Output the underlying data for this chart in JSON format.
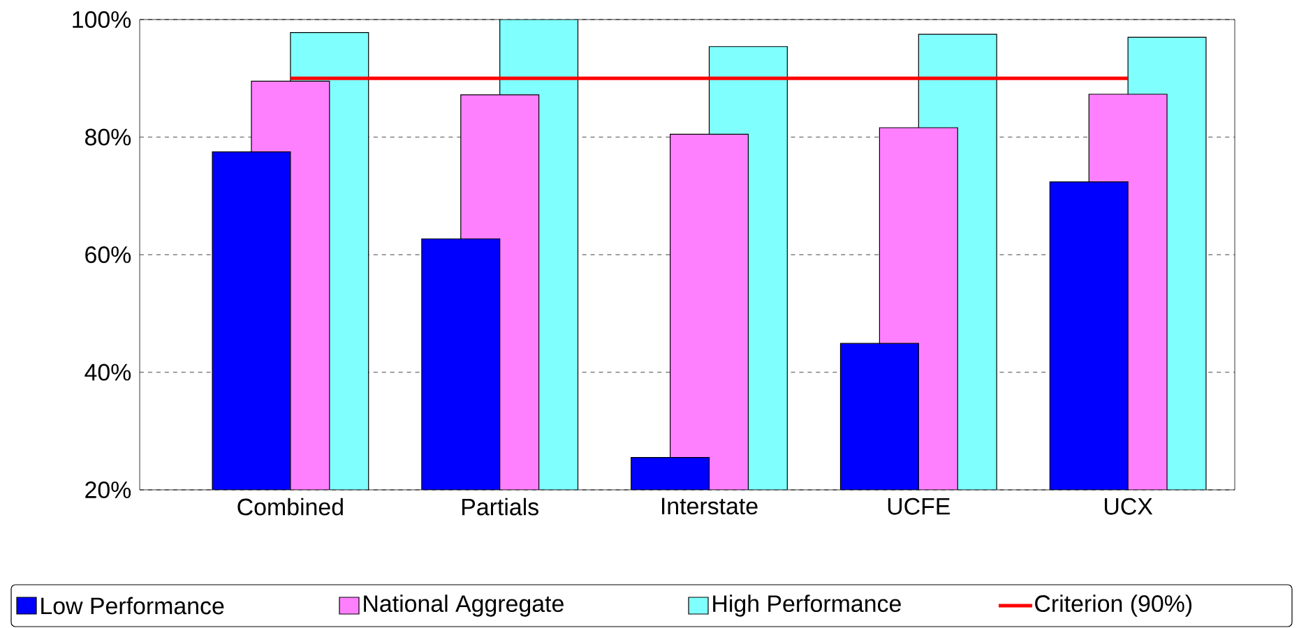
{
  "chart_data": {
    "type": "bar",
    "categories": [
      "Combined",
      "Partials",
      "Interstate",
      "UCFE",
      "UCX"
    ],
    "series": [
      {
        "name": "Low Performance",
        "color": "#0000ff",
        "values": [
          77.5,
          62.7,
          25.5,
          44.9,
          72.4
        ]
      },
      {
        "name": "National Aggregate",
        "color": "#ff80ff",
        "values": [
          89.5,
          87.2,
          80.5,
          81.6,
          87.3
        ]
      },
      {
        "name": "High Performance",
        "color": "#80ffff",
        "values": [
          97.8,
          100,
          95.4,
          97.5,
          97.0
        ]
      },
      {
        "name": "Criterion (90%)",
        "type": "line",
        "color": "#ff0000",
        "values": [
          90,
          90,
          90,
          90,
          90
        ]
      }
    ],
    "ylim": [
      20,
      100
    ],
    "yticks": [
      {
        "value": 20,
        "label": "20%"
      },
      {
        "value": 40,
        "label": "40%"
      },
      {
        "value": 60,
        "label": "60%"
      },
      {
        "value": 80,
        "label": "80%"
      },
      {
        "value": 100,
        "label": "100%"
      }
    ],
    "grid": "y",
    "legend": "bottom",
    "marker": "none",
    "line_style": "solid"
  }
}
